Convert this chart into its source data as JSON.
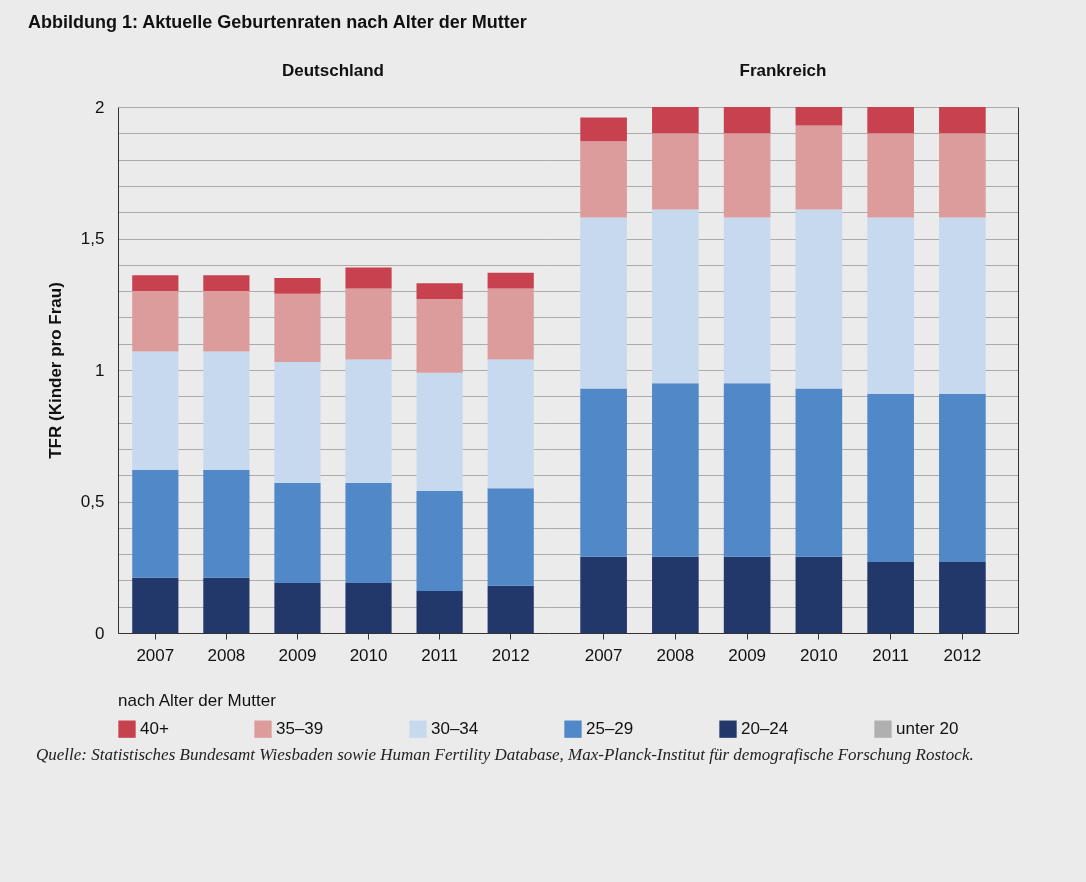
{
  "chart_data": [
    {
      "type": "bar",
      "stacked": true,
      "title": "Abbildung 1: Aktuelle Geburtenraten nach Alter der Mutter",
      "subtitle": "Deutschland",
      "ylabel": "TFR (Kinder pro Frau)",
      "legend_title": "nach Alter der Mutter",
      "legend": "bottom",
      "grid": "y",
      "categories": [
        "2007",
        "2008",
        "2009",
        "2010",
        "2011",
        "2012"
      ],
      "ylim": [
        0,
        2
      ],
      "yticks": [
        0,
        {
          "value": 0.1,
          "label": null
        },
        {
          "value": 0.2,
          "label": null
        },
        {
          "value": 0.3,
          "label": null
        },
        {
          "value": 0.4,
          "label": null
        },
        {
          "value": 0.5,
          "label": "0,5"
        },
        {
          "value": 0.6,
          "label": null
        },
        {
          "value": 0.7,
          "label": null
        },
        {
          "value": 0.8,
          "label": null
        },
        {
          "value": 0.9,
          "label": null
        },
        1,
        {
          "value": 1.1,
          "label": null
        },
        {
          "value": 1.2,
          "label": null
        },
        {
          "value": 1.3,
          "label": null
        },
        {
          "value": 1.4,
          "label": null
        },
        {
          "value": 1.5,
          "label": "1,5"
        },
        {
          "value": 1.6,
          "label": null
        },
        {
          "value": 1.7,
          "label": null
        },
        {
          "value": 1.8,
          "label": null
        },
        {
          "value": 1.9,
          "label": null
        },
        2
      ],
      "annotations": [
        "Quelle: Statistisches Bundesamt Wiesbaden sowie Human Fertility Database, Max-Planck-Institut für demografische Forschung Rostock."
      ],
      "series": [
        {
          "name": "unter 20",
          "color": "#b0b0b0",
          "values": [
            null,
            null,
            null,
            null,
            null,
            null
          ]
        },
        {
          "name": "20–24",
          "color": "#23386a",
          "values": [
            0.21,
            0.21,
            0.19,
            0.19,
            0.16,
            0.18
          ]
        },
        {
          "name": "25–29",
          "color": "#5088c8",
          "values": [
            0.41,
            0.41,
            0.38,
            0.38,
            0.38,
            0.37
          ]
        },
        {
          "name": "30–34",
          "color": "#c6d9ef",
          "values": [
            0.45,
            0.45,
            0.46,
            0.47,
            0.45,
            0.49
          ]
        },
        {
          "name": "35–39",
          "color": "#dc9c9c",
          "values": [
            0.23,
            0.23,
            0.26,
            0.27,
            0.28,
            0.27
          ]
        },
        {
          "name": "40+",
          "color": "#c8414f",
          "values": [
            0.06,
            0.06,
            0.06,
            0.08,
            0.06,
            0.06
          ]
        }
      ]
    },
    {
      "type": "bar",
      "stacked": true,
      "subtitle": "Frankreich",
      "grid": "y",
      "tick_labels": "x",
      "categories": [
        "2007",
        "2008",
        "2009",
        "2010",
        "2011",
        "2012"
      ],
      "ylim": [
        0,
        2
      ],
      "yticks": [
        0,
        0.1,
        0.2,
        0.3,
        0.4,
        0.5,
        0.6,
        0.7,
        0.8,
        0.9,
        1,
        1.1,
        1.2,
        1.3,
        1.4,
        1.5,
        1.6,
        1.7,
        1.8,
        1.9,
        2
      ],
      "series": [
        {
          "color": "#b0b0b0",
          "values": [
            null,
            null,
            null,
            null,
            null,
            null
          ]
        },
        {
          "color": "#23386a",
          "values": [
            0.29,
            0.29,
            0.29,
            0.29,
            0.27,
            0.27
          ]
        },
        {
          "color": "#5088c8",
          "values": [
            0.64,
            0.66,
            0.66,
            0.64,
            0.64,
            0.64
          ]
        },
        {
          "color": "#c6d9ef",
          "values": [
            0.65,
            0.66,
            0.63,
            0.68,
            0.67,
            0.67
          ]
        },
        {
          "color": "#dc9c9c",
          "values": [
            0.29,
            0.29,
            0.32,
            0.32,
            0.32,
            0.32
          ]
        },
        {
          "color": "#c8414f",
          "values": [
            0.09,
            0.1,
            0.1,
            0.07,
            0.1,
            0.1
          ]
        }
      ]
    }
  ]
}
